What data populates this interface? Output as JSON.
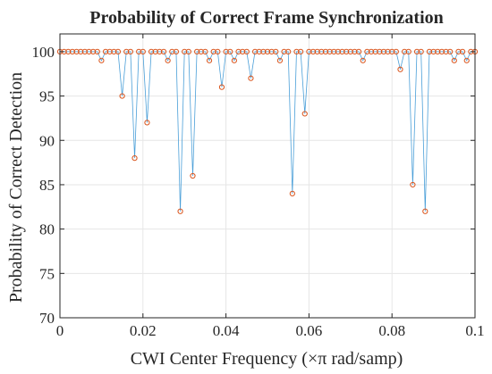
{
  "chart_data": {
    "type": "line",
    "title": "Probability of Correct Frame Synchronization",
    "xlabel": "CWI Center Frequency  (×π rad/samp)",
    "ylabel": "Probability of Correct Detection",
    "xlim": [
      0,
      0.1
    ],
    "ylim": [
      70,
      102
    ],
    "xticks": [
      0,
      0.02,
      0.04,
      0.06,
      0.08,
      0.1
    ],
    "xtick_labels": [
      "0",
      "0.02",
      "0.04",
      "0.06",
      "0.08",
      "0.1"
    ],
    "yticks": [
      70,
      75,
      80,
      85,
      90,
      95,
      100
    ],
    "ytick_labels": [
      "70",
      "75",
      "80",
      "85",
      "90",
      "95",
      "100"
    ],
    "grid": true,
    "line_color": "#4a9fd8",
    "marker_color": "#d9541c",
    "marker": "open-circle",
    "x": [
      0,
      0.001,
      0.002,
      0.003,
      0.004,
      0.005,
      0.006,
      0.007,
      0.008,
      0.009,
      0.01,
      0.011,
      0.012,
      0.013,
      0.014,
      0.015,
      0.016,
      0.017,
      0.018,
      0.019,
      0.02,
      0.021,
      0.022,
      0.023,
      0.024,
      0.025,
      0.026,
      0.027,
      0.028,
      0.029,
      0.03,
      0.031,
      0.032,
      0.033,
      0.034,
      0.035,
      0.036,
      0.037,
      0.038,
      0.039,
      0.04,
      0.041,
      0.042,
      0.043,
      0.044,
      0.045,
      0.046,
      0.047,
      0.048,
      0.049,
      0.05,
      0.051,
      0.052,
      0.053,
      0.054,
      0.055,
      0.056,
      0.057,
      0.058,
      0.059,
      0.06,
      0.061,
      0.062,
      0.063,
      0.064,
      0.065,
      0.066,
      0.067,
      0.068,
      0.069,
      0.07,
      0.071,
      0.072,
      0.073,
      0.074,
      0.075,
      0.076,
      0.077,
      0.078,
      0.079,
      0.08,
      0.081,
      0.082,
      0.083,
      0.084,
      0.085,
      0.086,
      0.087,
      0.088,
      0.089,
      0.09,
      0.091,
      0.092,
      0.093,
      0.094,
      0.095,
      0.096,
      0.097,
      0.098,
      0.099,
      0.1
    ],
    "y": [
      100,
      100,
      100,
      100,
      100,
      100,
      100,
      100,
      100,
      100,
      99,
      100,
      100,
      100,
      100,
      95,
      100,
      100,
      88,
      100,
      100,
      92,
      100,
      100,
      100,
      100,
      99,
      100,
      100,
      82,
      100,
      100,
      86,
      100,
      100,
      100,
      99,
      100,
      100,
      96,
      100,
      100,
      99,
      100,
      100,
      100,
      97,
      100,
      100,
      100,
      100,
      100,
      100,
      99,
      100,
      100,
      84,
      100,
      100,
      93,
      100,
      100,
      100,
      100,
      100,
      100,
      100,
      100,
      100,
      100,
      100,
      100,
      100,
      99,
      100,
      100,
      100,
      100,
      100,
      100,
      100,
      100,
      98,
      100,
      100,
      85,
      100,
      100,
      82,
      100,
      100,
      100,
      100,
      100,
      100,
      99,
      100,
      100,
      99,
      100,
      100
    ]
  }
}
